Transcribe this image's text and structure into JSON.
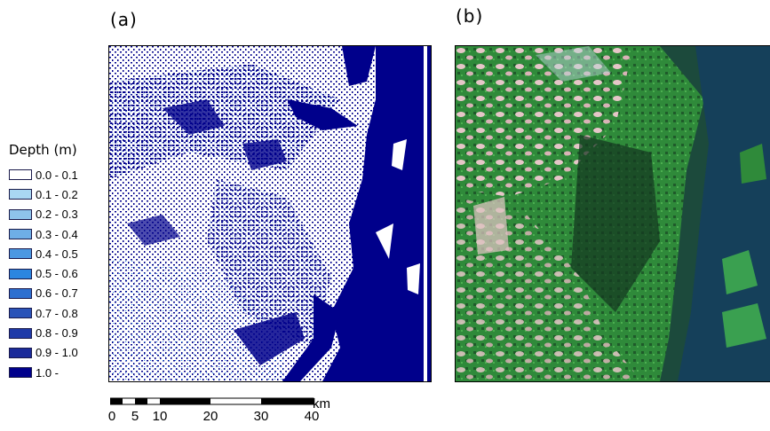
{
  "panels": {
    "a_label": "(a)",
    "b_label": "(b)"
  },
  "legend": {
    "title": "Depth (m)",
    "items": [
      {
        "label": "0.0 - 0.1",
        "color": "#ffffff"
      },
      {
        "label": "0.1 - 0.2",
        "color": "#a9d7f2"
      },
      {
        "label": "0.2 - 0.3",
        "color": "#8ec3ea"
      },
      {
        "label": "0.3 - 0.4",
        "color": "#6eaee6"
      },
      {
        "label": "0.4 - 0.5",
        "color": "#4b98e2"
      },
      {
        "label": "0.5 - 0.6",
        "color": "#2b86e0"
      },
      {
        "label": "0.6 - 0.7",
        "color": "#2d6fd0"
      },
      {
        "label": "0.7 - 0.8",
        "color": "#2a53b8"
      },
      {
        "label": "0.8 - 0.9",
        "color": "#1f3aa8"
      },
      {
        "label": "0.9 - 1.0",
        "color": "#1a2a9a"
      },
      {
        "label": "1.0 -",
        "color": "#00008b"
      }
    ]
  },
  "scalebar": {
    "unit": "km",
    "ticks": [
      "0",
      "5",
      "10",
      "20",
      "30",
      "40"
    ]
  },
  "colors": {
    "water_deep": "#00008b",
    "vegetation": "#2f8a3a",
    "river": "#15405a",
    "cloud": "#e6c6c8"
  }
}
